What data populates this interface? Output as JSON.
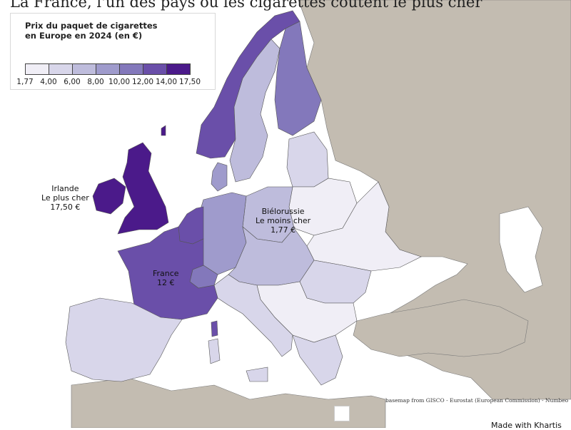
{
  "title": "La France, l'un des pays où les cigarettes coûtent le plus cher",
  "legend": {
    "title": "Prix du paquet de cigarettes en Europe en 2024 (en €)",
    "ticks": [
      "1,77",
      "4,00",
      "6,00",
      "8,00",
      "10,00",
      "12,00",
      "14,00",
      "17,50"
    ],
    "colors": [
      "#f0eef6",
      "#d8d6ea",
      "#bebcdc",
      "#9f9bcc",
      "#8378bb",
      "#6a4fa9",
      "#4b1a8a"
    ]
  },
  "annotations": {
    "ireland": [
      "Irlande",
      "Le plus cher",
      "17,50 €"
    ],
    "belarus": [
      "Biélorussie",
      "Le moins cher",
      "1,77 €"
    ],
    "france": [
      "France",
      "12 €"
    ]
  },
  "source": "basemap from GISCO - Eurostat (European Commission) - Numbeo",
  "made_with": "Made with Khartis",
  "colors": {
    "nodata": "#c3bcb1",
    "border": "#555555",
    "sea": "#ffffff"
  }
}
